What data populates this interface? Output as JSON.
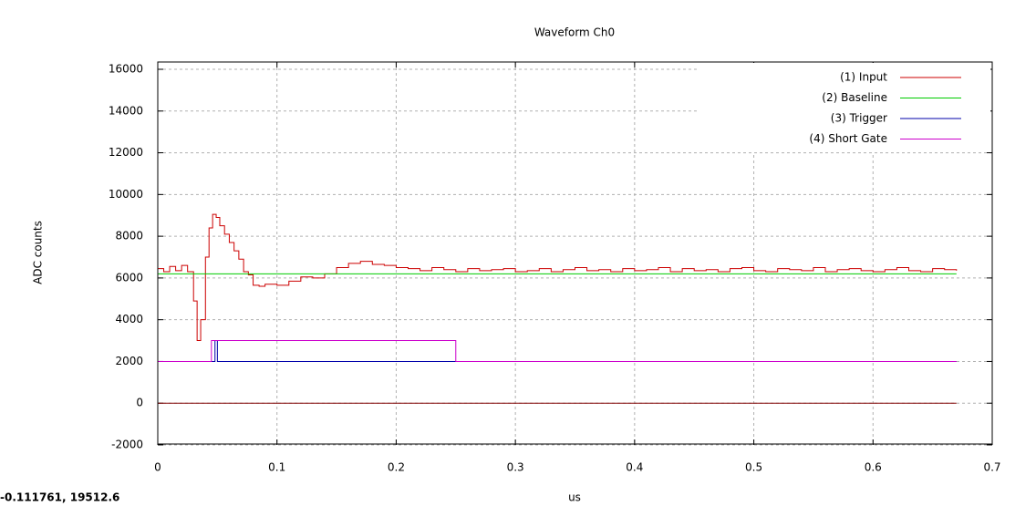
{
  "chart_data": {
    "type": "line",
    "step": true,
    "title": "Waveform Ch0",
    "x_label": "us",
    "y_label": "ADC counts",
    "cursor_readout": "-0.111761,  19512.6",
    "xlim": [
      0,
      0.7
    ],
    "ylim": [
      -2000,
      16350
    ],
    "xticks": [
      0,
      0.1,
      0.2,
      0.3,
      0.4,
      0.5,
      0.6,
      0.7
    ],
    "yticks": [
      -2000,
      0,
      2000,
      4000,
      6000,
      8000,
      10000,
      12000,
      14000,
      16000
    ],
    "grid": true,
    "legend": "top-right",
    "series": [
      {
        "name": "(1) Input",
        "color": "#cc0000",
        "x": [
          0,
          0.005,
          0.01,
          0.015,
          0.02,
          0.025,
          0.03,
          0.033,
          0.036,
          0.04,
          0.043,
          0.046,
          0.049,
          0.052,
          0.056,
          0.06,
          0.064,
          0.068,
          0.072,
          0.076,
          0.08,
          0.085,
          0.09,
          0.1,
          0.11,
          0.12,
          0.13,
          0.14,
          0.15,
          0.16,
          0.17,
          0.18,
          0.19,
          0.2,
          0.21,
          0.22,
          0.23,
          0.24,
          0.25,
          0.26,
          0.27,
          0.28,
          0.29,
          0.3,
          0.31,
          0.32,
          0.33,
          0.34,
          0.35,
          0.36,
          0.37,
          0.38,
          0.39,
          0.4,
          0.41,
          0.42,
          0.43,
          0.44,
          0.45,
          0.46,
          0.47,
          0.48,
          0.49,
          0.5,
          0.51,
          0.52,
          0.53,
          0.54,
          0.55,
          0.56,
          0.57,
          0.58,
          0.59,
          0.6,
          0.61,
          0.62,
          0.63,
          0.64,
          0.65,
          0.66,
          0.67
        ],
        "values": [
          6450,
          6300,
          6550,
          6350,
          6600,
          6300,
          4900,
          3000,
          4000,
          7000,
          8400,
          9050,
          8900,
          8500,
          8100,
          7700,
          7300,
          6900,
          6300,
          6150,
          5650,
          5600,
          5700,
          5650,
          5850,
          6050,
          6000,
          6200,
          6500,
          6700,
          6800,
          6650,
          6600,
          6500,
          6450,
          6350,
          6500,
          6400,
          6300,
          6450,
          6350,
          6400,
          6450,
          6300,
          6350,
          6450,
          6300,
          6400,
          6500,
          6350,
          6400,
          6300,
          6450,
          6350,
          6400,
          6500,
          6300,
          6450,
          6350,
          6400,
          6300,
          6450,
          6500,
          6350,
          6300,
          6450,
          6400,
          6350,
          6500,
          6300,
          6400,
          6450,
          6350,
          6300,
          6400,
          6500,
          6350,
          6300,
          6450,
          6400,
          6350
        ]
      },
      {
        "name": "(2) Baseline",
        "color": "#00cc00",
        "x": [
          0,
          0.67
        ],
        "values": [
          6200,
          6200
        ]
      },
      {
        "name": "(3) Trigger",
        "color": "#0000aa",
        "x": [
          0,
          0.048,
          0.048,
          0.05,
          0.05,
          0.67
        ],
        "values": [
          2000,
          2000,
          3000,
          3000,
          2000,
          2000
        ]
      },
      {
        "name": "(4) Short Gate",
        "color": "#cc00cc",
        "x": [
          0,
          0.045,
          0.045,
          0.25,
          0.25,
          0.67
        ],
        "values": [
          2000,
          2000,
          3000,
          3000,
          2000,
          2000
        ]
      },
      {
        "color": "#800000",
        "x": [
          0,
          0.67
        ],
        "values": [
          0,
          0
        ]
      }
    ]
  }
}
